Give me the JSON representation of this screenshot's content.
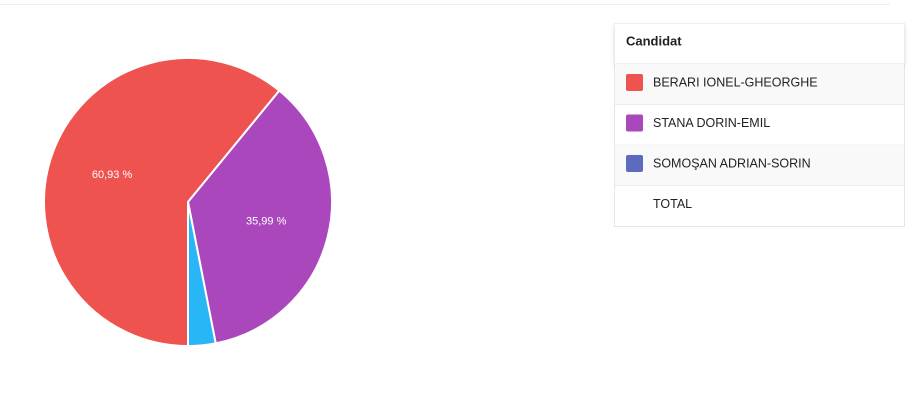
{
  "chart_data": {
    "type": "pie",
    "categories": [
      "BERARI IONEL-GHEORGHE",
      "STANA DORIN-EMIL",
      "SOMOŞAN ADRIAN-SORIN"
    ],
    "values": [
      60.93,
      35.99,
      3.08
    ],
    "value_labels": [
      "60,93 %",
      "35,99 %",
      null
    ],
    "colors": [
      "#ef5350",
      "#ab47bc",
      "#29b6f6"
    ],
    "legend_colors": [
      "#ef5350",
      "#ab47bc",
      "#5c6bc0"
    ]
  },
  "legend_table": {
    "header": "Candidat",
    "total": "TOTAL"
  }
}
